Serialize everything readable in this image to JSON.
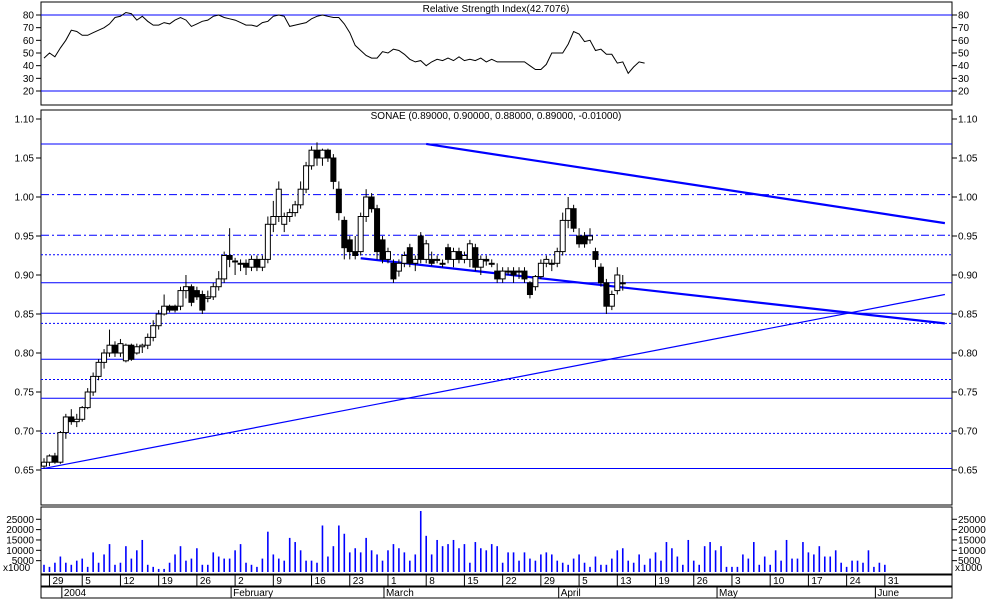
{
  "chart_data": [
    {
      "type": "line",
      "title": "Relative Strength Index(42.7076)",
      "ylim": [
        10,
        85
      ],
      "yticks": [
        20,
        30,
        40,
        50,
        60,
        70,
        80
      ],
      "reference_lines": [
        80,
        20
      ],
      "series": [
        {
          "values": [
            46,
            50,
            47,
            54,
            60,
            68,
            67,
            64,
            64,
            66,
            68,
            70,
            73,
            78,
            79,
            82,
            81,
            76,
            79,
            75,
            72,
            72,
            74,
            73,
            76,
            78,
            76,
            71,
            73,
            75,
            76,
            79,
            80,
            78,
            77,
            76,
            74,
            72,
            72,
            71,
            74,
            75,
            79,
            80,
            79,
            71,
            72,
            73,
            74,
            77,
            79,
            80,
            79,
            78,
            78,
            73,
            66,
            56,
            52,
            48,
            46,
            46,
            51,
            50,
            53,
            52,
            49,
            45,
            43,
            44,
            40,
            43,
            45,
            44,
            46,
            44,
            47,
            44,
            45,
            44,
            46,
            43,
            45,
            43,
            43,
            43,
            43,
            43,
            43,
            40,
            37,
            37,
            41,
            50,
            50,
            50,
            57,
            67,
            65,
            59,
            60,
            52,
            53,
            49,
            49,
            42,
            43,
            34,
            39,
            43,
            42
          ]
        }
      ]
    },
    {
      "type": "candlestick",
      "title": "SONAE (0.89000, 0.90000, 0.88000, 0.89000, -0.01000)",
      "ylim": [
        0.6,
        1.1
      ],
      "yticks": [
        "0.65",
        "0.70",
        "0.75",
        "0.80",
        "0.85",
        "0.90",
        "0.95",
        "1.00",
        "1.05",
        "1.10"
      ],
      "x_labels": [
        {
          "i": 1,
          "label": "29"
        },
        {
          "i": 7,
          "label": "5"
        },
        {
          "i": 14,
          "label": "12"
        },
        {
          "i": 21,
          "label": "19"
        },
        {
          "i": 28,
          "label": "26"
        },
        {
          "i": 35,
          "label": "2"
        },
        {
          "i": 42,
          "label": "9"
        },
        {
          "i": 49,
          "label": "16"
        },
        {
          "i": 56,
          "label": "23"
        },
        {
          "i": 63,
          "label": "1"
        },
        {
          "i": 70,
          "label": "8"
        },
        {
          "i": 77,
          "label": "15"
        },
        {
          "i": 84,
          "label": "22"
        },
        {
          "i": 91,
          "label": "29"
        },
        {
          "i": 98,
          "label": "5"
        },
        {
          "i": 105,
          "label": "13"
        },
        {
          "i": 112,
          "label": "19"
        },
        {
          "i": 119,
          "label": "26"
        },
        {
          "i": 126,
          "label": "3"
        },
        {
          "i": 133,
          "label": "10"
        },
        {
          "i": 140,
          "label": "17"
        },
        {
          "i": 147,
          "label": "24"
        },
        {
          "i": 154,
          "label": "31"
        }
      ],
      "month_labels": [
        {
          "i": 4,
          "label": "2004"
        },
        {
          "i": 35,
          "label": "February"
        },
        {
          "i": 63,
          "label": "March"
        },
        {
          "i": 95,
          "label": "April"
        },
        {
          "i": 124,
          "label": "May"
        },
        {
          "i": 153,
          "label": "June"
        }
      ],
      "candles": [
        {
          "o": 0.655,
          "h": 0.665,
          "l": 0.652,
          "c": 0.66
        },
        {
          "o": 0.66,
          "h": 0.67,
          "l": 0.655,
          "c": 0.668
        },
        {
          "o": 0.668,
          "h": 0.672,
          "l": 0.658,
          "c": 0.66
        },
        {
          "o": 0.66,
          "h": 0.7,
          "l": 0.658,
          "c": 0.698
        },
        {
          "o": 0.698,
          "h": 0.722,
          "l": 0.69,
          "c": 0.718
        },
        {
          "o": 0.718,
          "h": 0.728,
          "l": 0.708,
          "c": 0.712
        },
        {
          "o": 0.712,
          "h": 0.722,
          "l": 0.705,
          "c": 0.715
        },
        {
          "o": 0.715,
          "h": 0.732,
          "l": 0.712,
          "c": 0.73
        },
        {
          "o": 0.73,
          "h": 0.755,
          "l": 0.728,
          "c": 0.75
        },
        {
          "o": 0.75,
          "h": 0.775,
          "l": 0.745,
          "c": 0.77
        },
        {
          "o": 0.77,
          "h": 0.792,
          "l": 0.765,
          "c": 0.788
        },
        {
          "o": 0.788,
          "h": 0.805,
          "l": 0.78,
          "c": 0.8
        },
        {
          "o": 0.8,
          "h": 0.83,
          "l": 0.795,
          "c": 0.81
        },
        {
          "o": 0.81,
          "h": 0.815,
          "l": 0.795,
          "c": 0.8
        },
        {
          "o": 0.8,
          "h": 0.818,
          "l": 0.795,
          "c": 0.812
        },
        {
          "o": 0.79,
          "h": 0.812,
          "l": 0.788,
          "c": 0.81
        },
        {
          "o": 0.81,
          "h": 0.812,
          "l": 0.79,
          "c": 0.792
        },
        {
          "o": 0.8,
          "h": 0.812,
          "l": 0.798,
          "c": 0.808
        },
        {
          "o": 0.808,
          "h": 0.812,
          "l": 0.8,
          "c": 0.81
        },
        {
          "o": 0.81,
          "h": 0.825,
          "l": 0.805,
          "c": 0.82
        },
        {
          "o": 0.82,
          "h": 0.842,
          "l": 0.815,
          "c": 0.835
        },
        {
          "o": 0.835,
          "h": 0.855,
          "l": 0.83,
          "c": 0.85
        },
        {
          "o": 0.85,
          "h": 0.875,
          "l": 0.848,
          "c": 0.86
        },
        {
          "o": 0.86,
          "h": 0.862,
          "l": 0.852,
          "c": 0.855
        },
        {
          "o": 0.86,
          "h": 0.862,
          "l": 0.852,
          "c": 0.855
        },
        {
          "o": 0.86,
          "h": 0.885,
          "l": 0.855,
          "c": 0.88
        },
        {
          "o": 0.88,
          "h": 0.9,
          "l": 0.87,
          "c": 0.885
        },
        {
          "o": 0.885,
          "h": 0.888,
          "l": 0.86,
          "c": 0.865
        },
        {
          "o": 0.88,
          "h": 0.885,
          "l": 0.868,
          "c": 0.872
        },
        {
          "o": 0.875,
          "h": 0.88,
          "l": 0.85,
          "c": 0.855
        },
        {
          "o": 0.87,
          "h": 0.88,
          "l": 0.865,
          "c": 0.872
        },
        {
          "o": 0.872,
          "h": 0.89,
          "l": 0.868,
          "c": 0.885
        },
        {
          "o": 0.885,
          "h": 0.905,
          "l": 0.88,
          "c": 0.895
        },
        {
          "o": 0.895,
          "h": 0.93,
          "l": 0.89,
          "c": 0.925
        },
        {
          "o": 0.925,
          "h": 0.96,
          "l": 0.91,
          "c": 0.92
        },
        {
          "o": 0.918,
          "h": 0.922,
          "l": 0.9,
          "c": 0.918
        },
        {
          "o": 0.915,
          "h": 0.92,
          "l": 0.905,
          "c": 0.915
        },
        {
          "o": 0.915,
          "h": 0.92,
          "l": 0.9,
          "c": 0.91
        },
        {
          "o": 0.91,
          "h": 0.925,
          "l": 0.905,
          "c": 0.92
        },
        {
          "o": 0.92,
          "h": 0.925,
          "l": 0.905,
          "c": 0.91
        },
        {
          "o": 0.91,
          "h": 0.925,
          "l": 0.905,
          "c": 0.92
        },
        {
          "o": 0.92,
          "h": 0.975,
          "l": 0.915,
          "c": 0.965
        },
        {
          "o": 0.965,
          "h": 0.995,
          "l": 0.955,
          "c": 0.975
        },
        {
          "o": 0.975,
          "h": 1.02,
          "l": 0.968,
          "c": 1.01
        },
        {
          "o": 0.965,
          "h": 0.98,
          "l": 0.955,
          "c": 0.975
        },
        {
          "o": 0.975,
          "h": 0.985,
          "l": 0.968,
          "c": 0.98
        },
        {
          "o": 0.98,
          "h": 0.995,
          "l": 0.975,
          "c": 0.99
        },
        {
          "o": 0.99,
          "h": 1.02,
          "l": 0.985,
          "c": 1.01
        },
        {
          "o": 1.01,
          "h": 1.045,
          "l": 1.005,
          "c": 1.04
        },
        {
          "o": 1.04,
          "h": 1.065,
          "l": 1.035,
          "c": 1.06
        },
        {
          "o": 1.06,
          "h": 1.07,
          "l": 1.04,
          "c": 1.05
        },
        {
          "o": 1.05,
          "h": 1.062,
          "l": 1.04,
          "c": 1.06
        },
        {
          "o": 1.06,
          "h": 1.062,
          "l": 1.045,
          "c": 1.05
        },
        {
          "o": 1.05,
          "h": 1.055,
          "l": 1.01,
          "c": 1.02
        },
        {
          "o": 1.01,
          "h": 1.02,
          "l": 0.97,
          "c": 0.98
        },
        {
          "o": 0.97,
          "h": 0.975,
          "l": 0.92,
          "c": 0.935
        },
        {
          "o": 0.945,
          "h": 0.95,
          "l": 0.92,
          "c": 0.93
        },
        {
          "o": 0.93,
          "h": 0.95,
          "l": 0.92,
          "c": 0.925
        },
        {
          "o": 0.93,
          "h": 0.98,
          "l": 0.925,
          "c": 0.975
        },
        {
          "o": 0.975,
          "h": 1.01,
          "l": 0.968,
          "c": 1.0
        },
        {
          "o": 1.0,
          "h": 1.005,
          "l": 0.98,
          "c": 0.985
        },
        {
          "o": 0.985,
          "h": 0.99,
          "l": 0.92,
          "c": 0.93
        },
        {
          "o": 0.945,
          "h": 0.95,
          "l": 0.915,
          "c": 0.92
        },
        {
          "o": 0.92,
          "h": 0.935,
          "l": 0.915,
          "c": 0.93
        },
        {
          "o": 0.915,
          "h": 0.92,
          "l": 0.89,
          "c": 0.895
        },
        {
          "o": 0.905,
          "h": 0.92,
          "l": 0.898,
          "c": 0.915
        },
        {
          "o": 0.915,
          "h": 0.93,
          "l": 0.91,
          "c": 0.925
        },
        {
          "o": 0.935,
          "h": 0.94,
          "l": 0.91,
          "c": 0.915
        },
        {
          "o": 0.915,
          "h": 0.925,
          "l": 0.905,
          "c": 0.92
        },
        {
          "o": 0.95,
          "h": 0.955,
          "l": 0.915,
          "c": 0.92
        },
        {
          "o": 0.92,
          "h": 0.945,
          "l": 0.915,
          "c": 0.94
        },
        {
          "o": 0.92,
          "h": 0.93,
          "l": 0.912,
          "c": 0.915
        },
        {
          "o": 0.92,
          "h": 0.925,
          "l": 0.915,
          "c": 0.92
        },
        {
          "o": 0.915,
          "h": 0.92,
          "l": 0.91,
          "c": 0.915
        },
        {
          "o": 0.935,
          "h": 0.94,
          "l": 0.915,
          "c": 0.92
        },
        {
          "o": 0.92,
          "h": 0.935,
          "l": 0.91,
          "c": 0.93
        },
        {
          "o": 0.93,
          "h": 0.935,
          "l": 0.915,
          "c": 0.92
        },
        {
          "o": 0.92,
          "h": 0.93,
          "l": 0.915,
          "c": 0.925
        },
        {
          "o": 0.92,
          "h": 0.945,
          "l": 0.91,
          "c": 0.94
        },
        {
          "o": 0.935,
          "h": 0.94,
          "l": 0.905,
          "c": 0.91
        },
        {
          "o": 0.91,
          "h": 0.925,
          "l": 0.9,
          "c": 0.92
        },
        {
          "o": 0.92,
          "h": 0.925,
          "l": 0.912,
          "c": 0.918
        },
        {
          "o": 0.915,
          "h": 0.92,
          "l": 0.91,
          "c": 0.915
        },
        {
          "o": 0.905,
          "h": 0.915,
          "l": 0.89,
          "c": 0.895
        },
        {
          "o": 0.895,
          "h": 0.91,
          "l": 0.89,
          "c": 0.905
        },
        {
          "o": 0.905,
          "h": 0.91,
          "l": 0.9,
          "c": 0.905
        },
        {
          "o": 0.905,
          "h": 0.91,
          "l": 0.89,
          "c": 0.9
        },
        {
          "o": 0.905,
          "h": 0.91,
          "l": 0.895,
          "c": 0.905
        },
        {
          "o": 0.905,
          "h": 0.91,
          "l": 0.89,
          "c": 0.895
        },
        {
          "o": 0.89,
          "h": 0.892,
          "l": 0.87,
          "c": 0.875
        },
        {
          "o": 0.885,
          "h": 0.9,
          "l": 0.88,
          "c": 0.898
        },
        {
          "o": 0.898,
          "h": 0.92,
          "l": 0.895,
          "c": 0.915
        },
        {
          "o": 0.915,
          "h": 0.925,
          "l": 0.91,
          "c": 0.92
        },
        {
          "o": 0.915,
          "h": 0.92,
          "l": 0.905,
          "c": 0.915
        },
        {
          "o": 0.915,
          "h": 0.935,
          "l": 0.91,
          "c": 0.93
        },
        {
          "o": 0.93,
          "h": 0.98,
          "l": 0.925,
          "c": 0.97
        },
        {
          "o": 0.97,
          "h": 1.0,
          "l": 0.96,
          "c": 0.985
        },
        {
          "o": 0.985,
          "h": 0.99,
          "l": 0.955,
          "c": 0.96
        },
        {
          "o": 0.95,
          "h": 0.96,
          "l": 0.935,
          "c": 0.94
        },
        {
          "o": 0.95,
          "h": 0.955,
          "l": 0.935,
          "c": 0.94
        },
        {
          "o": 0.945,
          "h": 0.96,
          "l": 0.94,
          "c": 0.95
        },
        {
          "o": 0.93,
          "h": 0.935,
          "l": 0.91,
          "c": 0.92
        },
        {
          "o": 0.91,
          "h": 0.915,
          "l": 0.885,
          "c": 0.89
        },
        {
          "o": 0.89,
          "h": 0.895,
          "l": 0.85,
          "c": 0.86
        },
        {
          "o": 0.86,
          "h": 0.88,
          "l": 0.855,
          "c": 0.875
        },
        {
          "o": 0.88,
          "h": 0.91,
          "l": 0.875,
          "c": 0.9
        },
        {
          "o": 0.89,
          "h": 0.9,
          "l": 0.88,
          "c": 0.89
        }
      ],
      "horizontal_lines": [
        {
          "y": 1.068,
          "style": "solid"
        },
        {
          "y": 1.003,
          "style": "dashdot"
        },
        {
          "y": 0.951,
          "style": "dashdot"
        },
        {
          "y": 0.926,
          "style": "dotted"
        },
        {
          "y": 0.89,
          "style": "solid"
        },
        {
          "y": 0.851,
          "style": "solid"
        },
        {
          "y": 0.838,
          "style": "dotted"
        },
        {
          "y": 0.792,
          "style": "solid"
        },
        {
          "y": 0.766,
          "style": "dotted"
        },
        {
          "y": 0.742,
          "style": "solid"
        },
        {
          "y": 0.697,
          "style": "dotted"
        },
        {
          "y": 0.652,
          "style": "solid"
        }
      ],
      "trend_lines": [
        {
          "x1": 58,
          "y1": 0.9215,
          "x2": 165,
          "y2": 0.838
        },
        {
          "x1": 70,
          "y1": 1.068,
          "x2": 165,
          "y2": 0.9665
        },
        {
          "x1": 0,
          "y1": 0.652,
          "x2": 165,
          "y2": 0.875
        }
      ]
    },
    {
      "type": "bar",
      "yticks": [
        "5000",
        "10000",
        "15000",
        "20000",
        "25000"
      ],
      "ylim": [
        0,
        30000
      ],
      "unit_label": "x1000",
      "values": [
        3000,
        2000,
        4000,
        7000,
        4000,
        3000,
        5000,
        6000,
        2000,
        9000,
        4000,
        8000,
        13000,
        3000,
        4000,
        12000,
        6000,
        10000,
        15000,
        3000,
        2000,
        1000,
        1000,
        4000,
        8000,
        12000,
        5000,
        6000,
        11000,
        3000,
        3000,
        9000,
        7000,
        6000,
        6000,
        10000,
        13000,
        4000,
        3000,
        2000,
        6000,
        19000,
        8000,
        6000,
        5000,
        16000,
        14000,
        10000,
        5000,
        5000,
        4000,
        22000,
        7000,
        12000,
        22000,
        18000,
        9000,
        11000,
        9000,
        16000,
        10000,
        8000,
        5000,
        10000,
        13000,
        11000,
        9000,
        5000,
        8000,
        29000,
        17000,
        8000,
        15000,
        12000,
        13000,
        15000,
        11000,
        13000,
        4000,
        14000,
        11000,
        10000,
        13000,
        12000,
        4000,
        9000,
        9000,
        5000,
        9000,
        6000,
        5000,
        8000,
        9000,
        8000,
        5000,
        4000,
        3000,
        6000,
        8000,
        4000,
        2000,
        7000,
        3000,
        3000,
        6000,
        10000,
        11000,
        5000,
        4000,
        8000,
        3000,
        6000,
        9000,
        5000,
        14000,
        11000,
        7000,
        3000,
        15000,
        5000,
        3000,
        12000,
        14000,
        10000,
        12000,
        2000,
        2000,
        2000,
        8000,
        6000,
        14000,
        3000,
        7000,
        3000,
        10000,
        5000,
        15000,
        6000,
        6000,
        14000,
        9000,
        8000,
        12000,
        7000,
        7000,
        10000,
        4000,
        2000,
        5000,
        5000,
        4000,
        10000,
        2000,
        4000,
        3000
      ]
    }
  ],
  "colors": {
    "line": "#0000ff",
    "background": "#ffffff",
    "frame": "#000000",
    "bull_candle": "#ffffff",
    "bear_candle": "#000000"
  }
}
